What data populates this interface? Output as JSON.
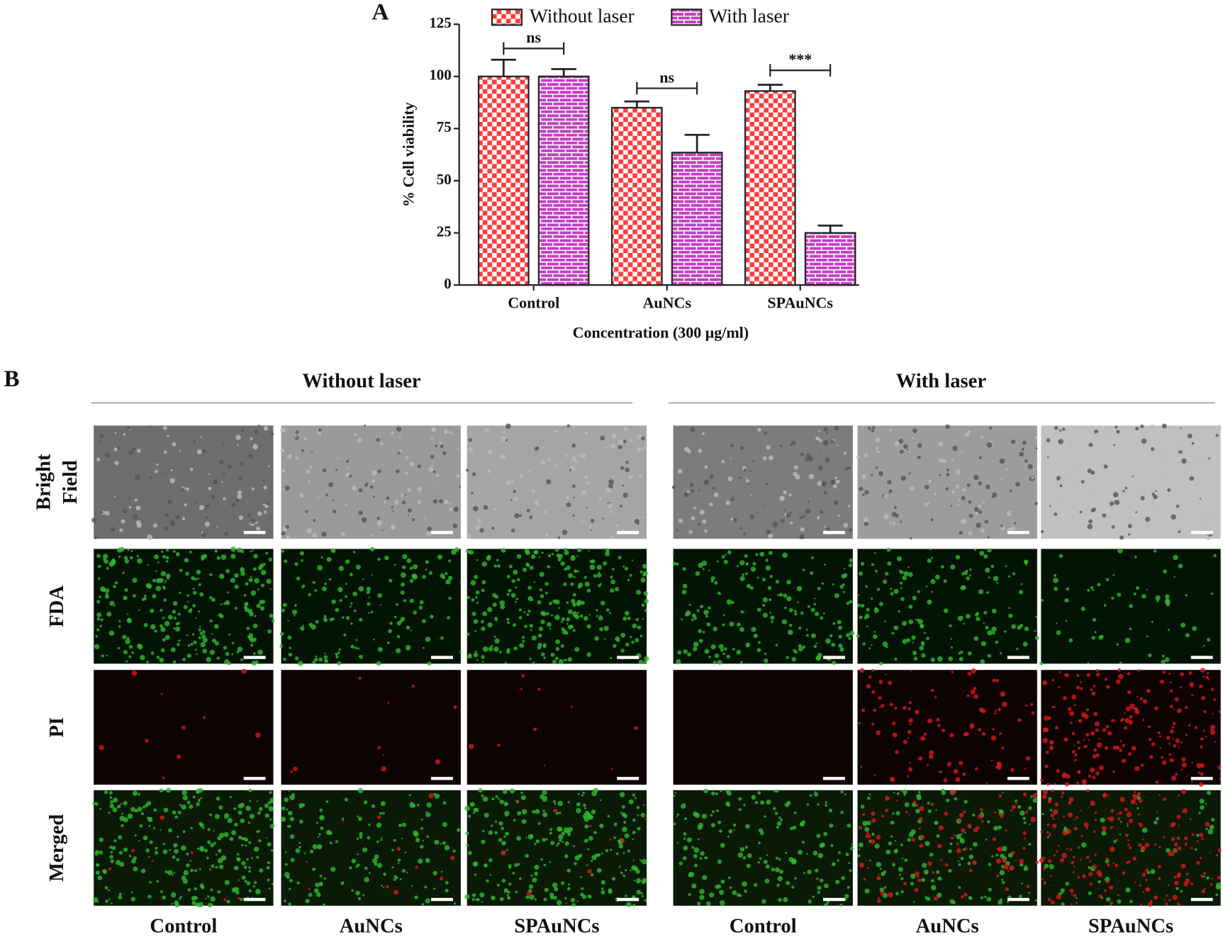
{
  "chart_data": {
    "type": "bar",
    "panel_label": "A",
    "ylabel": "% Cell viability",
    "xlabel": "Concentration (300 μg/ml)",
    "categories": [
      "Control",
      "AuNCs",
      "SPAuNCs"
    ],
    "series": [
      {
        "name": "Without laser",
        "color": "#ff3b3b",
        "pattern": "checker",
        "values": [
          100,
          85,
          93
        ],
        "errors": [
          8,
          3,
          3
        ]
      },
      {
        "name": "With laser",
        "color": "#c23fc2",
        "pattern": "brick",
        "values": [
          100,
          63.5,
          25
        ],
        "errors": [
          3.5,
          8.5,
          3.5
        ]
      }
    ],
    "ylim": [
      0,
      125
    ],
    "yticks": [
      0,
      25,
      50,
      75,
      100,
      125
    ],
    "annotations": [
      "ns",
      "ns",
      "***"
    ],
    "legend": "top"
  },
  "panel_b": {
    "label": "B",
    "groups": [
      "Without laser",
      "With laser"
    ],
    "rows": [
      [
        "Bright",
        "Field"
      ],
      [
        "FDA"
      ],
      [
        "PI"
      ],
      [
        "Merged"
      ]
    ],
    "columns": [
      "Control",
      "AuNCs",
      "SPAuNCs",
      "Control",
      "AuNCs",
      "SPAuNCs"
    ]
  }
}
